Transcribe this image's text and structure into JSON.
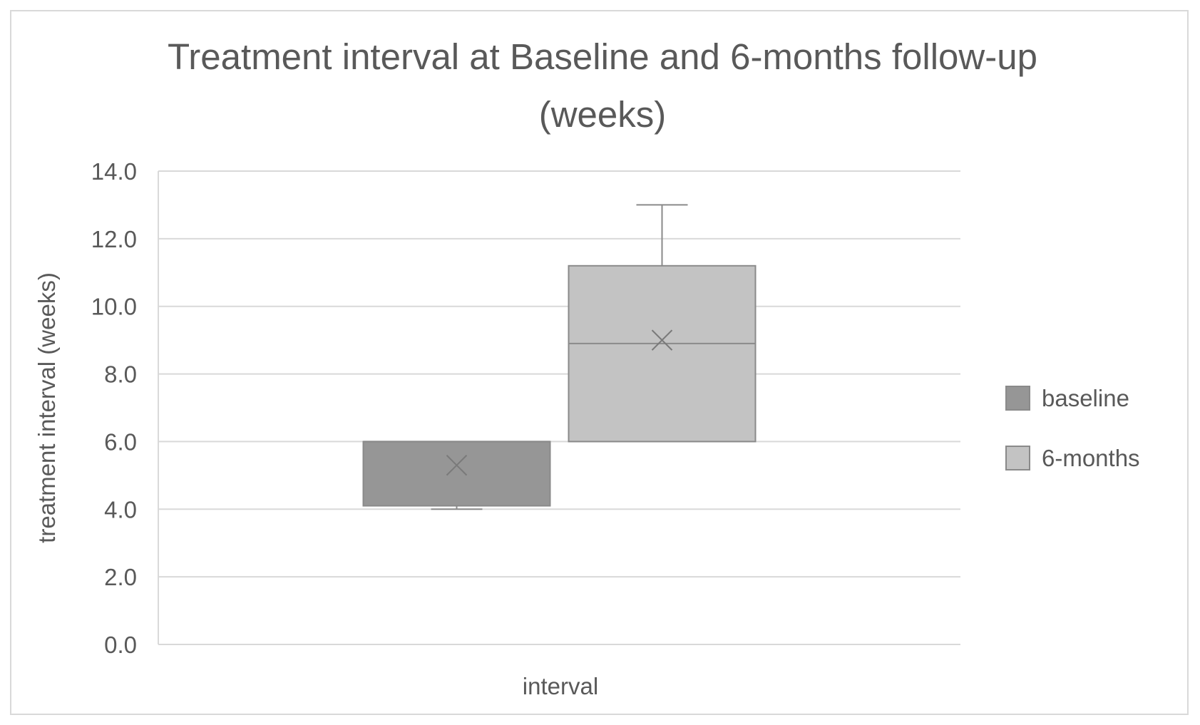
{
  "chart_data": {
    "type": "box",
    "title_lines": [
      "Treatment interval at Baseline and 6-months follow-up",
      "(weeks)"
    ],
    "xlabel": "interval",
    "ylabel": "treatment interval (weeks)",
    "ylim": [
      0,
      14
    ],
    "y_ticks": [
      "0.0",
      "2.0",
      "4.0",
      "6.0",
      "8.0",
      "10.0",
      "12.0",
      "14.0"
    ],
    "grid": true,
    "legend_position": "right",
    "series": [
      {
        "name": "baseline",
        "color": "#969696",
        "min": 4.0,
        "q1": 4.1,
        "median": 6.0,
        "q3": 6.0,
        "max": 6.0,
        "mean": 5.3
      },
      {
        "name": "6-months",
        "color": "#c3c3c3",
        "min": 6.0,
        "q1": 6.0,
        "median": 8.9,
        "q3": 11.2,
        "max": 13.0,
        "mean": 9.0
      }
    ]
  }
}
